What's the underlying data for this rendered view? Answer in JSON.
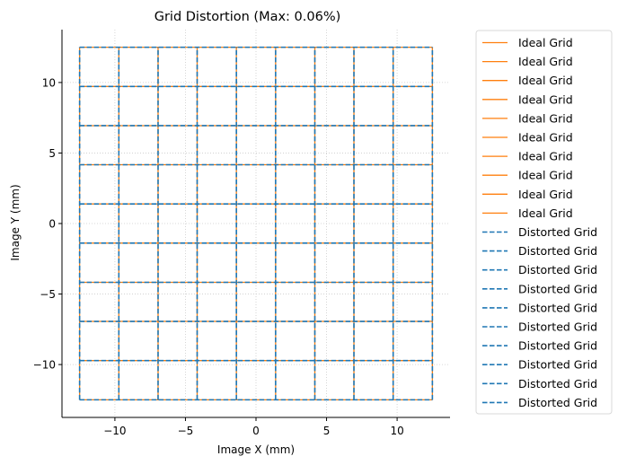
{
  "chart_data": {
    "type": "line",
    "title": "Grid Distortion (Max: 0.06%)",
    "xlabel": "Image X (mm)",
    "ylabel": "Image Y (mm)",
    "xlim": [
      -13.75,
      13.75
    ],
    "ylim": [
      -13.75,
      13.75
    ],
    "xticks": [
      -10,
      -5,
      0,
      5,
      10
    ],
    "yticks": [
      -10,
      -5,
      0,
      5,
      10
    ],
    "xtick_labels": [
      "−10",
      "−5",
      "0",
      "5",
      "10"
    ],
    "ytick_labels": [
      "−10",
      "−5",
      "0",
      "5",
      "10"
    ],
    "grid": true,
    "legend_position": "outside-right",
    "grid_coordinates": [
      -12.5,
      -9.72,
      -6.94,
      -4.17,
      -1.39,
      1.39,
      4.17,
      6.94,
      9.72,
      12.5
    ],
    "grid_extent": [
      -12.5,
      12.5
    ],
    "series": [
      {
        "name": "Ideal Grid",
        "style": "solid",
        "color": "#ff7f0e"
      },
      {
        "name": "Distorted Grid",
        "style": "dashed",
        "color": "#1f77b4"
      }
    ],
    "legend_entries": [
      {
        "label": "Ideal Grid",
        "style": "solid",
        "color": "#ff7f0e"
      },
      {
        "label": "Ideal Grid",
        "style": "solid",
        "color": "#ff7f0e"
      },
      {
        "label": "Ideal Grid",
        "style": "solid",
        "color": "#ff7f0e"
      },
      {
        "label": "Ideal Grid",
        "style": "solid",
        "color": "#ff7f0e"
      },
      {
        "label": "Ideal Grid",
        "style": "solid",
        "color": "#ff7f0e"
      },
      {
        "label": "Ideal Grid",
        "style": "solid",
        "color": "#ff7f0e"
      },
      {
        "label": "Ideal Grid",
        "style": "solid",
        "color": "#ff7f0e"
      },
      {
        "label": "Ideal Grid",
        "style": "solid",
        "color": "#ff7f0e"
      },
      {
        "label": "Ideal Grid",
        "style": "solid",
        "color": "#ff7f0e"
      },
      {
        "label": "Ideal Grid",
        "style": "solid",
        "color": "#ff7f0e"
      },
      {
        "label": "Distorted Grid",
        "style": "dashed",
        "color": "#1f77b4"
      },
      {
        "label": "Distorted Grid",
        "style": "dashed",
        "color": "#1f77b4"
      },
      {
        "label": "Distorted Grid",
        "style": "dashed",
        "color": "#1f77b4"
      },
      {
        "label": "Distorted Grid",
        "style": "dashed",
        "color": "#1f77b4"
      },
      {
        "label": "Distorted Grid",
        "style": "dashed",
        "color": "#1f77b4"
      },
      {
        "label": "Distorted Grid",
        "style": "dashed",
        "color": "#1f77b4"
      },
      {
        "label": "Distorted Grid",
        "style": "dashed",
        "color": "#1f77b4"
      },
      {
        "label": "Distorted Grid",
        "style": "dashed",
        "color": "#1f77b4"
      },
      {
        "label": "Distorted Grid",
        "style": "dashed",
        "color": "#1f77b4"
      },
      {
        "label": "Distorted Grid",
        "style": "dashed",
        "color": "#1f77b4"
      }
    ]
  }
}
